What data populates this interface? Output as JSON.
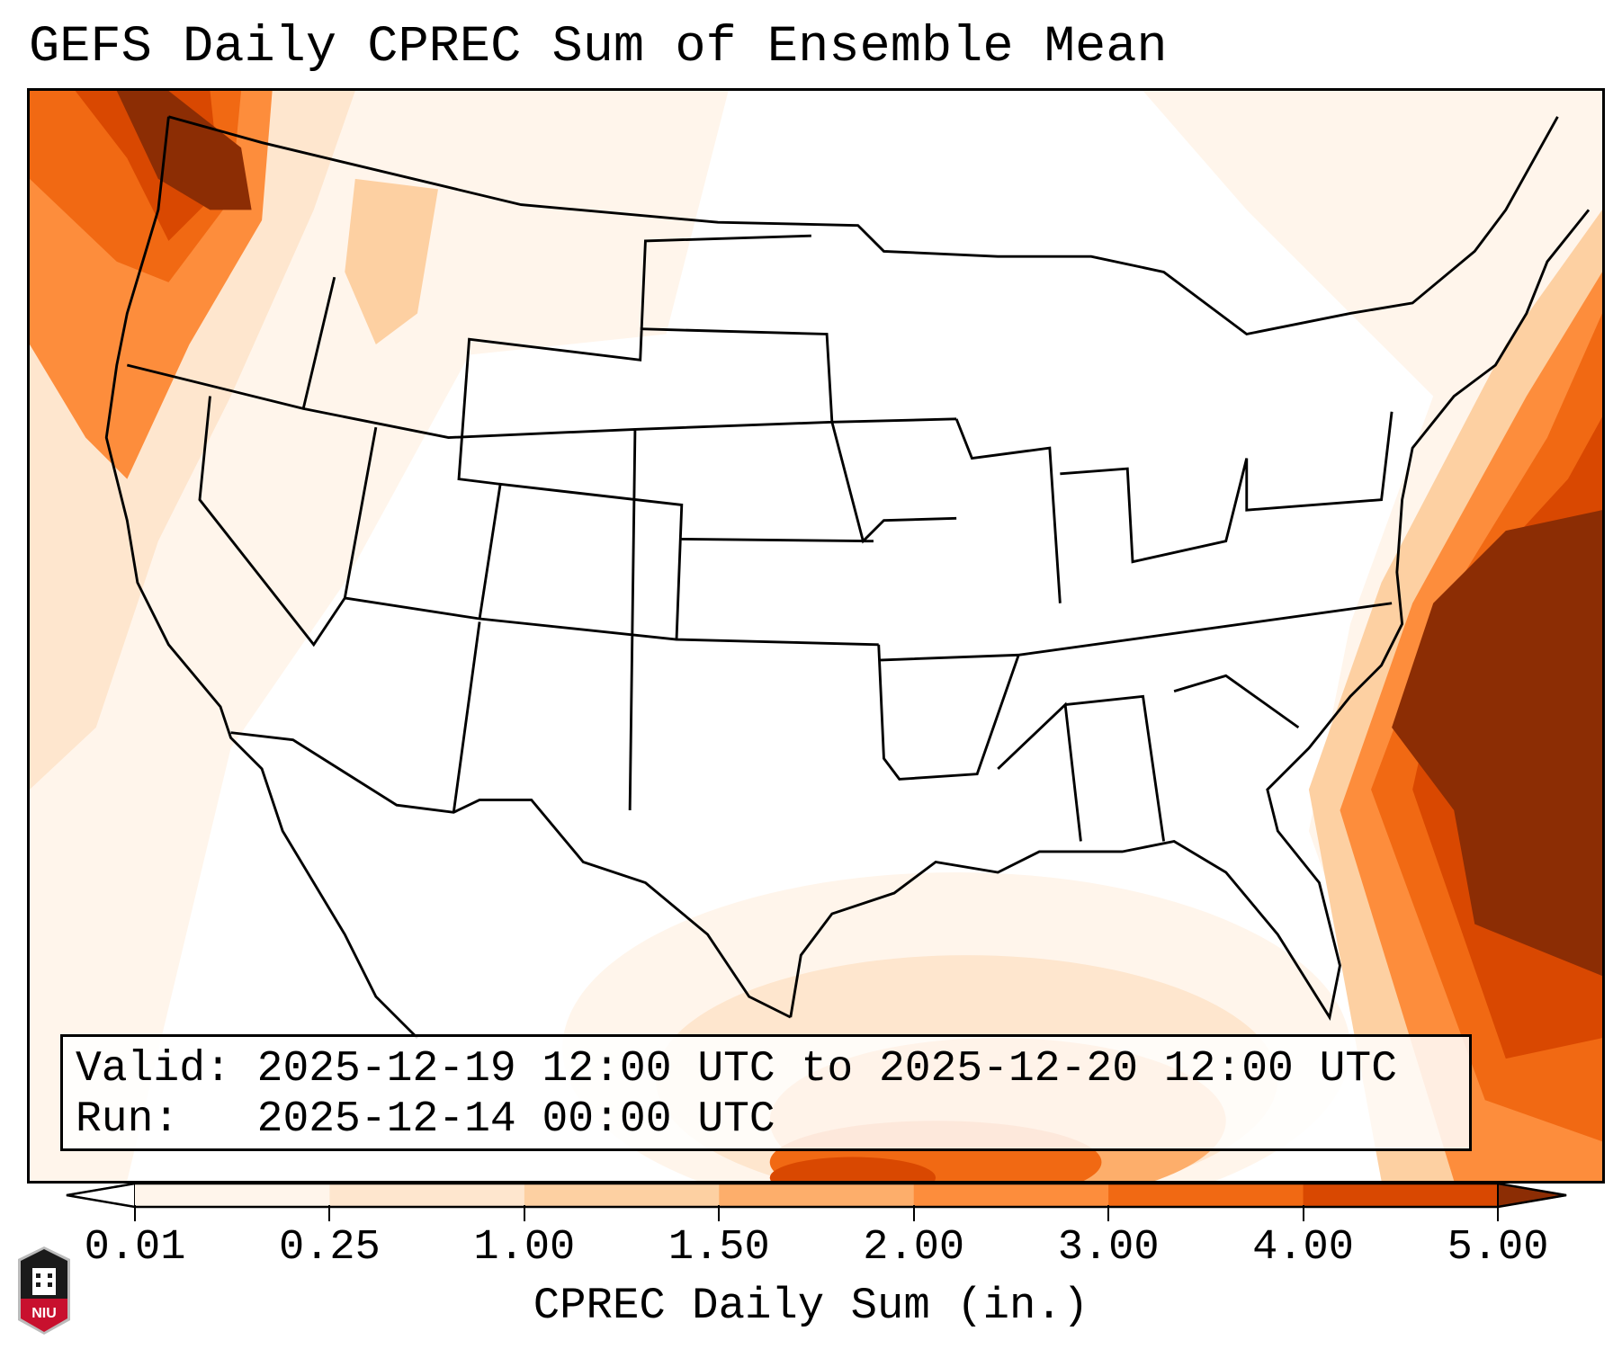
{
  "title": "GEFS Daily CPREC Sum of Ensemble Mean",
  "info": {
    "valid_line": "Valid: 2025-12-19 12:00 UTC to 2025-12-20 12:00 UTC",
    "run_line": "Run:   2025-12-14 00:00 UTC"
  },
  "logo_text": "NIU",
  "chart_data": {
    "type": "heatmap",
    "title": "GEFS Daily CPREC Sum of Ensemble Mean",
    "map_region": "CONUS",
    "colorbar": {
      "label": "CPREC Daily Sum (in.)",
      "ticks": [
        "0.01",
        "0.25",
        "1.00",
        "1.50",
        "2.00",
        "3.00",
        "4.00",
        "5.00"
      ],
      "levels": [
        0.01,
        0.25,
        1.0,
        1.5,
        2.0,
        3.0,
        4.0,
        5.0
      ],
      "colors": [
        "#fff5eb",
        "#fee6ce",
        "#fdd0a2",
        "#fdae6b",
        "#fd8d3c",
        "#f16913",
        "#d94801"
      ],
      "under_color": "#ffffff",
      "over_color": "#8c2d04",
      "extend": "both"
    },
    "features": [
      {
        "region": "Pacific Northwest coast",
        "max_in": 5.0
      },
      {
        "region": "Western Atlantic off Southeast coast",
        "max_in": 5.0
      },
      {
        "region": "Gulf of Mexico",
        "max_in": 4.0
      }
    ]
  }
}
